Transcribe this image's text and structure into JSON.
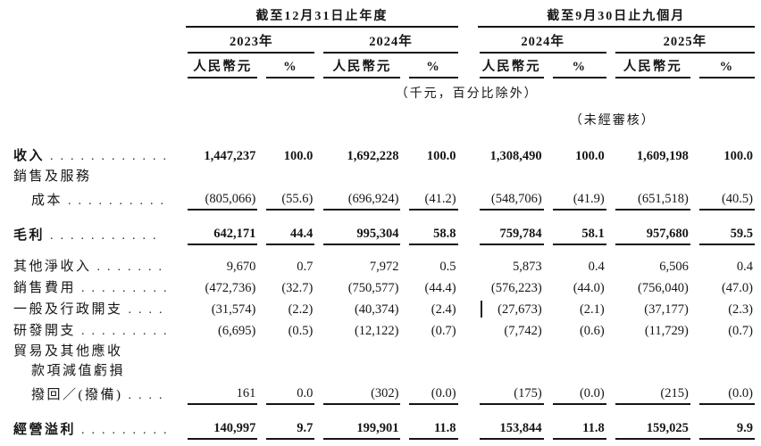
{
  "page": {
    "background": "#ffffff",
    "text_color": "#161616"
  },
  "table": {
    "groups": [
      {
        "title": "截至12月31日止年度",
        "years": [
          "2023年",
          "2024年"
        ]
      },
      {
        "title": "截至9月30日止九個月",
        "years": [
          "2024年",
          "2025年"
        ]
      }
    ],
    "currency_header": "人民幣元",
    "percent_header": "%",
    "unit_note": "（千元，百分比除外）",
    "unaudited_note": "（未經審核）",
    "rows": [
      {
        "label": "收入",
        "bold": true,
        "dots": 12,
        "values": [
          "1,447,237",
          "100.0",
          "1,692,228",
          "100.0",
          "1,308,490",
          "100.0",
          "1,609,198",
          "100.0"
        ]
      },
      {
        "label": "銷售及服務"
      },
      {
        "label": "成本",
        "indent": 1,
        "dots": 10,
        "underline": true,
        "values": [
          "(805,066)",
          "(55.6)",
          "(696,924)",
          "(41.2)",
          "(548,706)",
          "(41.9)",
          "(651,518)",
          "(40.5)"
        ]
      },
      {
        "spacer": true
      },
      {
        "label": "毛利",
        "bold": true,
        "dots": 11,
        "underline": true,
        "values": [
          "642,171",
          "44.4",
          "995,304",
          "58.8",
          "759,784",
          "58.1",
          "957,680",
          "59.5"
        ]
      },
      {
        "spacer": true
      },
      {
        "label": "其他淨收入",
        "dots": 7,
        "values": [
          "9,670",
          "0.7",
          "7,972",
          "0.5",
          "5,873",
          "0.4",
          "6,506",
          "0.4"
        ]
      },
      {
        "label": "銷售費用",
        "dots": 9,
        "values": [
          "(472,736)",
          "(32.7)",
          "(750,577)",
          "(44.4)",
          "(576,223)",
          "(44.0)",
          "(756,040)",
          "(47.0)"
        ]
      },
      {
        "label": "一般及行政開支",
        "dots": 4,
        "values": [
          "(31,574)",
          "(2.2)",
          "(40,374)",
          "(2.4)",
          "(27,673)",
          "(2.1)",
          "(37,177)",
          "(2.3)"
        ]
      },
      {
        "label": "研發開支",
        "dots": 9,
        "values": [
          "(6,695)",
          "(0.5)",
          "(12,122)",
          "(0.7)",
          "(7,742)",
          "(0.6)",
          "(11,729)",
          "(0.7)"
        ]
      },
      {
        "label": "貿易及其他應收"
      },
      {
        "label": "款項減值虧損",
        "indent": 1
      },
      {
        "label": "撥回／(撥備)",
        "indent": 1,
        "dots": 4,
        "underline": true,
        "values": [
          "161",
          "0.0",
          "(302)",
          "(0.0)",
          "(175)",
          "(0.0)",
          "(215)",
          "(0.0)"
        ]
      },
      {
        "spacer": true
      },
      {
        "label": "經營溢利",
        "bold": true,
        "dots": 9,
        "underline": true,
        "values": [
          "140,997",
          "9.7",
          "199,901",
          "11.8",
          "153,844",
          "11.8",
          "159,025",
          "9.9"
        ]
      }
    ]
  }
}
